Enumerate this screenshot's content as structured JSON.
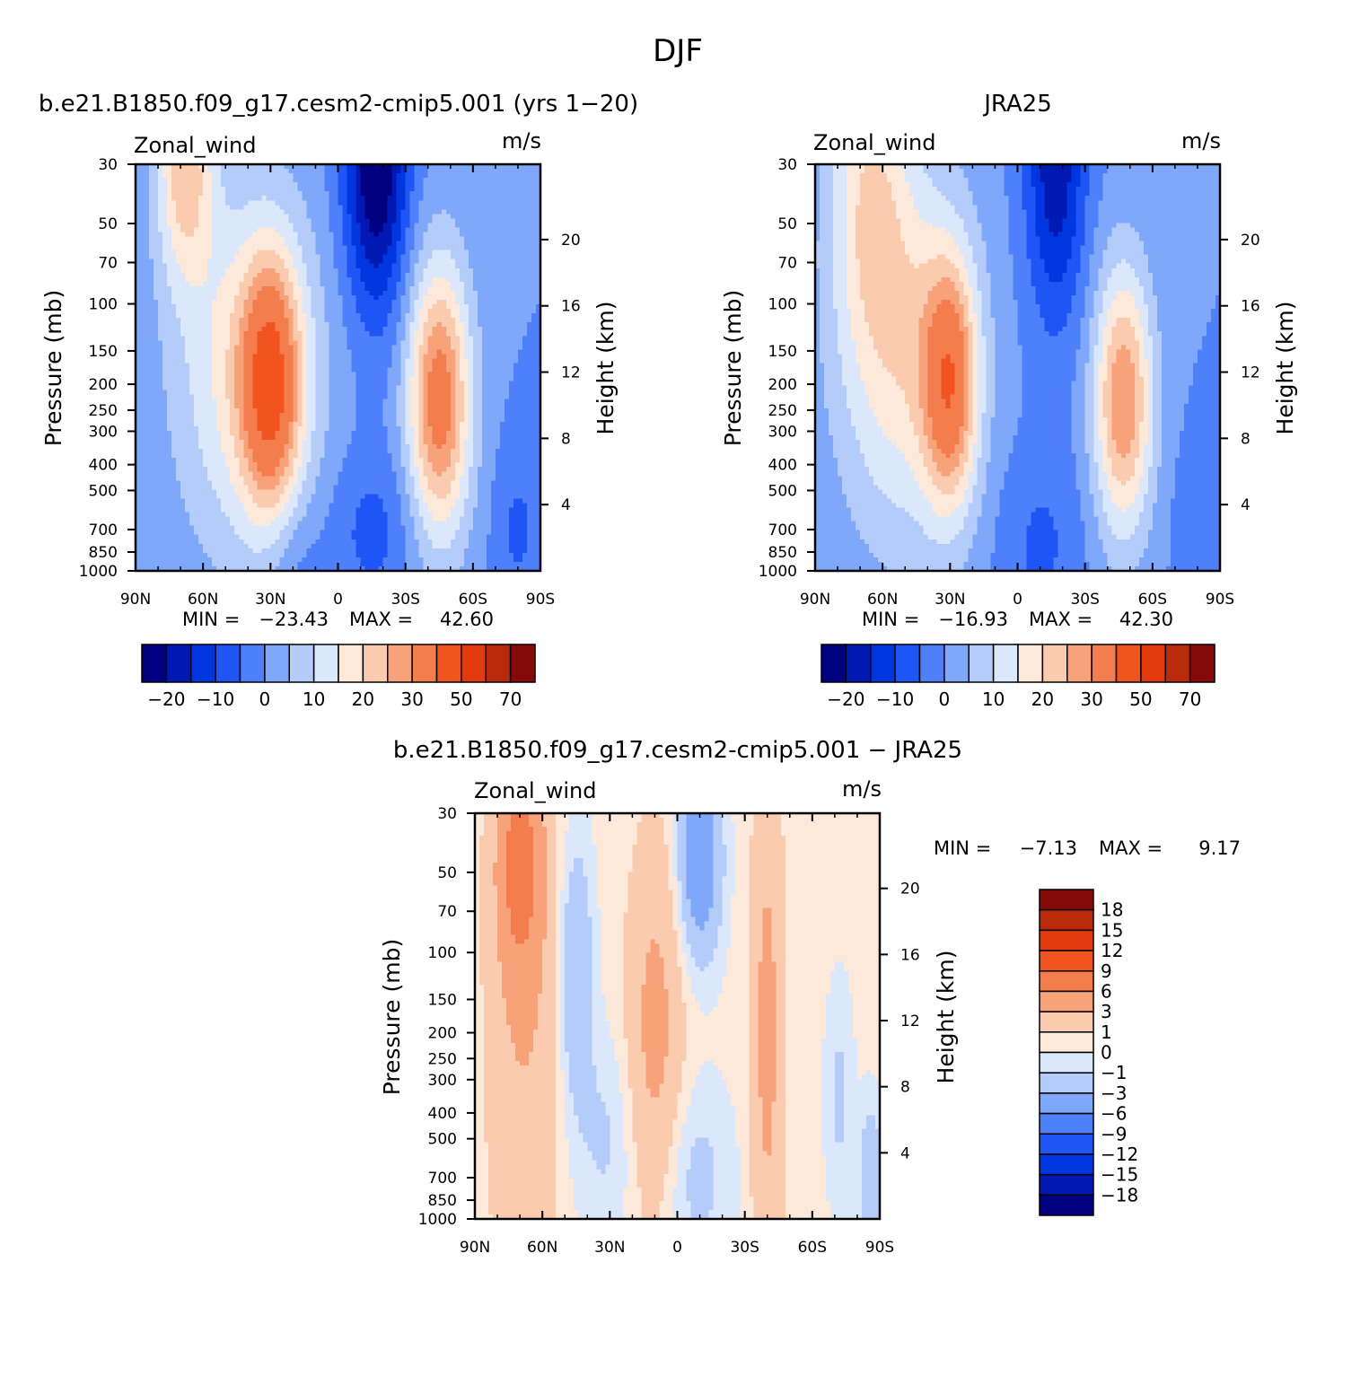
{
  "figure": {
    "title": "DJF",
    "colors": {
      "main_scale": [
        "#000080",
        "#0019b3",
        "#0036e0",
        "#1e55f5",
        "#4d80fa",
        "#80a8fa",
        "#b3ccfa",
        "#dbe8fc",
        "#fde9da",
        "#fbcbb0",
        "#f8a27a",
        "#f47d4d",
        "#f25420",
        "#e23a0c",
        "#b82a0a",
        "#870a0a"
      ],
      "diff_scale": [
        "#000080",
        "#0019b3",
        "#0036e0",
        "#1e55f5",
        "#4d80fa",
        "#80a8fa",
        "#b3ccfa",
        "#dbe8fc",
        "#fde9da",
        "#fbcbb0",
        "#f8a27a",
        "#f47d4d",
        "#f25420",
        "#e23a0c",
        "#b82a0a",
        "#870a0a"
      ]
    }
  },
  "chart_data": [
    {
      "id": "model",
      "type": "heatmap",
      "title": "b.e21.B1850.f09_g17.cesm2-cmip5.001 (yrs 1-20)",
      "variable": "Zonal_wind",
      "units": "m/s",
      "xlabel": "",
      "ylabel": "Pressure (mb)",
      "ylabel_right": "Height (km)",
      "x_ticks": [
        "90N",
        "60N",
        "30N",
        "0",
        "30S",
        "60S",
        "90S"
      ],
      "y_ticks": [
        30,
        50,
        70,
        100,
        150,
        200,
        250,
        300,
        400,
        500,
        700,
        850,
        1000
      ],
      "y_scale": "log",
      "y_range": [
        1000,
        30
      ],
      "right_ticks": [
        4,
        8,
        12,
        16,
        20
      ],
      "min_label": "MIN =",
      "min": "-23.43",
      "max_label": "MAX =",
      "max": "42.60",
      "colorbar_labels": [
        "-20",
        "-10",
        "0",
        "10",
        "20",
        "30",
        "50",
        "70"
      ],
      "field": {
        "base": 0,
        "features": [
          {
            "lat": 68,
            "p": 30,
            "amp": 22,
            "wlat": 13,
            "wz": 1.0
          },
          {
            "lat": 40,
            "p": 180,
            "amp": 18,
            "wlat": 32,
            "wz": 1.6
          },
          {
            "lat": 30,
            "p": 200,
            "amp": 32,
            "wlat": 13,
            "wz": 1.05
          },
          {
            "lat": -45,
            "p": 230,
            "amp": 34,
            "wlat": 14,
            "wz": 1.2
          },
          {
            "lat": -17,
            "p": 30,
            "amp": -26,
            "wlat": 14,
            "wz": 1.25
          },
          {
            "lat": -15,
            "p": 700,
            "amp": -7,
            "wlat": 20,
            "wz": 0.7
          },
          {
            "lat": 20,
            "p": 900,
            "amp": -5,
            "wlat": 12,
            "wz": 0.5
          },
          {
            "lat": -80,
            "p": 700,
            "amp": -6,
            "wlat": 10,
            "wz": 0.7
          }
        ]
      }
    },
    {
      "id": "obs",
      "type": "heatmap",
      "title": "JRA25",
      "variable": "Zonal_wind",
      "units": "m/s",
      "xlabel": "",
      "ylabel": "Pressure (mb)",
      "ylabel_right": "Height (km)",
      "x_ticks": [
        "90N",
        "60N",
        "30N",
        "0",
        "30S",
        "60S",
        "90S"
      ],
      "y_ticks": [
        30,
        50,
        70,
        100,
        150,
        200,
        250,
        300,
        400,
        500,
        700,
        850,
        1000
      ],
      "y_scale": "log",
      "y_range": [
        1000,
        30
      ],
      "right_ticks": [
        4,
        8,
        12,
        16,
        20
      ],
      "min_label": "MIN =",
      "min": "-16.93",
      "max_label": "MAX =",
      "max": "42.30",
      "colorbar_labels": [
        "-20",
        "-10",
        "0",
        "10",
        "20",
        "30",
        "50",
        "70"
      ],
      "field": {
        "base": 0,
        "features": [
          {
            "lat": 66,
            "p": 35,
            "amp": 15,
            "wlat": 18,
            "wz": 1.4
          },
          {
            "lat": 50,
            "p": 150,
            "amp": 18,
            "wlat": 30,
            "wz": 1.7
          },
          {
            "lat": 30,
            "p": 200,
            "amp": 30,
            "wlat": 12,
            "wz": 1.05
          },
          {
            "lat": -47,
            "p": 230,
            "amp": 30,
            "wlat": 13,
            "wz": 1.15
          },
          {
            "lat": -17,
            "p": 30,
            "amp": -19,
            "wlat": 13,
            "wz": 1.3
          },
          {
            "lat": -10,
            "p": 800,
            "amp": -6,
            "wlat": 18,
            "wz": 0.8
          },
          {
            "lat": -80,
            "p": 700,
            "amp": -4,
            "wlat": 10,
            "wz": 0.7
          }
        ]
      }
    },
    {
      "id": "diff",
      "type": "heatmap",
      "title": "b.e21.B1850.f09_g17.cesm2-cmip5.001 - JRA25",
      "variable": "Zonal_wind",
      "units": "m/s",
      "xlabel": "",
      "ylabel": "Pressure (mb)",
      "ylabel_right": "Height (km)",
      "x_ticks": [
        "90N",
        "60N",
        "30N",
        "0",
        "30S",
        "60S",
        "90S"
      ],
      "y_ticks": [
        30,
        50,
        70,
        100,
        150,
        200,
        250,
        300,
        400,
        500,
        700,
        850,
        1000
      ],
      "y_scale": "log",
      "y_range": [
        1000,
        30
      ],
      "right_ticks": [
        4,
        8,
        12,
        16,
        20
      ],
      "min_label": "MIN =",
      "min": "-7.13",
      "max_label": "MAX =",
      "max": "9.17",
      "colorbar_labels": [
        "18",
        "15",
        "12",
        "9",
        "6",
        "3",
        "1",
        "0",
        "-1",
        "-3",
        "-6",
        "-9",
        "-12",
        "-15",
        "-18"
      ],
      "field": {
        "base": 0.3,
        "features": [
          {
            "lat": 70,
            "p": 45,
            "amp": 6,
            "wlat": 10,
            "wz": 1.0
          },
          {
            "lat": 68,
            "p": 200,
            "amp": 2.5,
            "wlat": 16,
            "wz": 2.5
          },
          {
            "lat": 10,
            "p": 200,
            "amp": 3.5,
            "wlat": 12,
            "wz": 1.6
          },
          {
            "lat": -40,
            "p": 200,
            "amp": 3.5,
            "wlat": 7,
            "wz": 2.2
          },
          {
            "lat": -10,
            "p": 45,
            "amp": -6,
            "wlat": 9,
            "wz": 0.8
          },
          {
            "lat": 45,
            "p": 120,
            "amp": -3.5,
            "wlat": 7,
            "wz": 1.1
          },
          {
            "lat": 32,
            "p": 500,
            "amp": -1.5,
            "wlat": 14,
            "wz": 0.9
          },
          {
            "lat": -8,
            "p": 700,
            "amp": -1.8,
            "wlat": 16,
            "wz": 0.8
          },
          {
            "lat": -72,
            "p": 350,
            "amp": -1.6,
            "wlat": 6,
            "wz": 0.9
          },
          {
            "lat": -86,
            "p": 700,
            "amp": -3,
            "wlat": 5,
            "wz": 0.6
          }
        ]
      }
    }
  ]
}
